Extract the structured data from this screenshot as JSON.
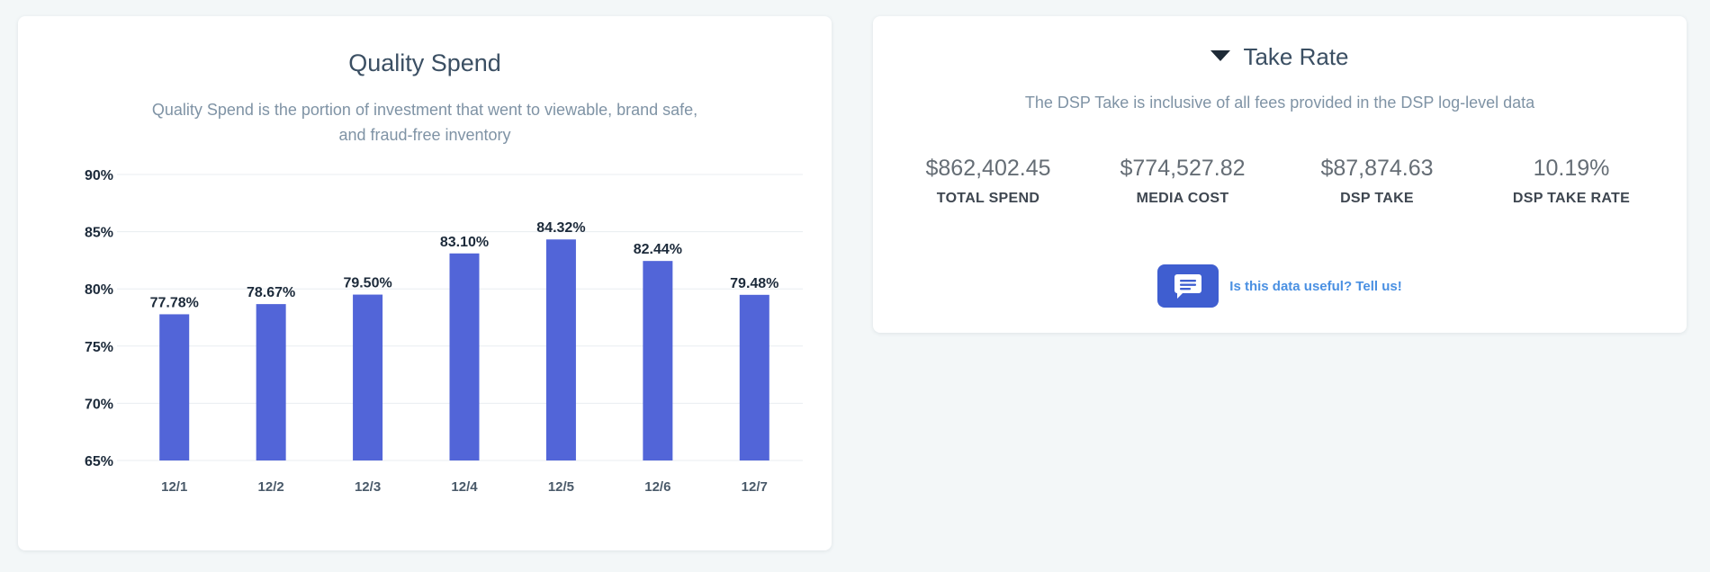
{
  "quality_spend": {
    "title": "Quality Spend",
    "subtitle_line1": "Quality Spend is the portion of investment that went to viewable, brand safe,",
    "subtitle_line2": "and fraud-free inventory"
  },
  "chart_data": {
    "type": "bar",
    "title": "Quality Spend",
    "xlabel": "",
    "ylabel": "",
    "categories": [
      "12/1",
      "12/2",
      "12/3",
      "12/4",
      "12/5",
      "12/6",
      "12/7"
    ],
    "values": [
      77.78,
      78.67,
      79.5,
      83.1,
      84.32,
      82.44,
      79.48
    ],
    "data_labels": [
      "77.78%",
      "78.67%",
      "79.50%",
      "83.10%",
      "84.32%",
      "82.44%",
      "79.48%"
    ],
    "ylim": [
      65,
      90
    ],
    "yticks": [
      65,
      70,
      75,
      80,
      85,
      90
    ],
    "ytick_labels": [
      "65%",
      "70%",
      "75%",
      "80%",
      "85%",
      "90%"
    ],
    "grid": true,
    "bar_color": "#5265d8"
  },
  "take_rate": {
    "title": "Take Rate",
    "subtitle": "The DSP Take is inclusive of all fees provided in the DSP log-level data",
    "metrics": [
      {
        "value": "$862,402.45",
        "label": "TOTAL SPEND"
      },
      {
        "value": "$774,527.82",
        "label": "MEDIA COST"
      },
      {
        "value": "$87,874.63",
        "label": "DSP TAKE"
      },
      {
        "value": "10.19%",
        "label": "DSP TAKE RATE"
      }
    ],
    "feedback_text": "Is this data useful? Tell us!"
  },
  "colors": {
    "accent": "#3f5ed0",
    "link": "#4a90e2",
    "background": "#f3f7f8"
  }
}
